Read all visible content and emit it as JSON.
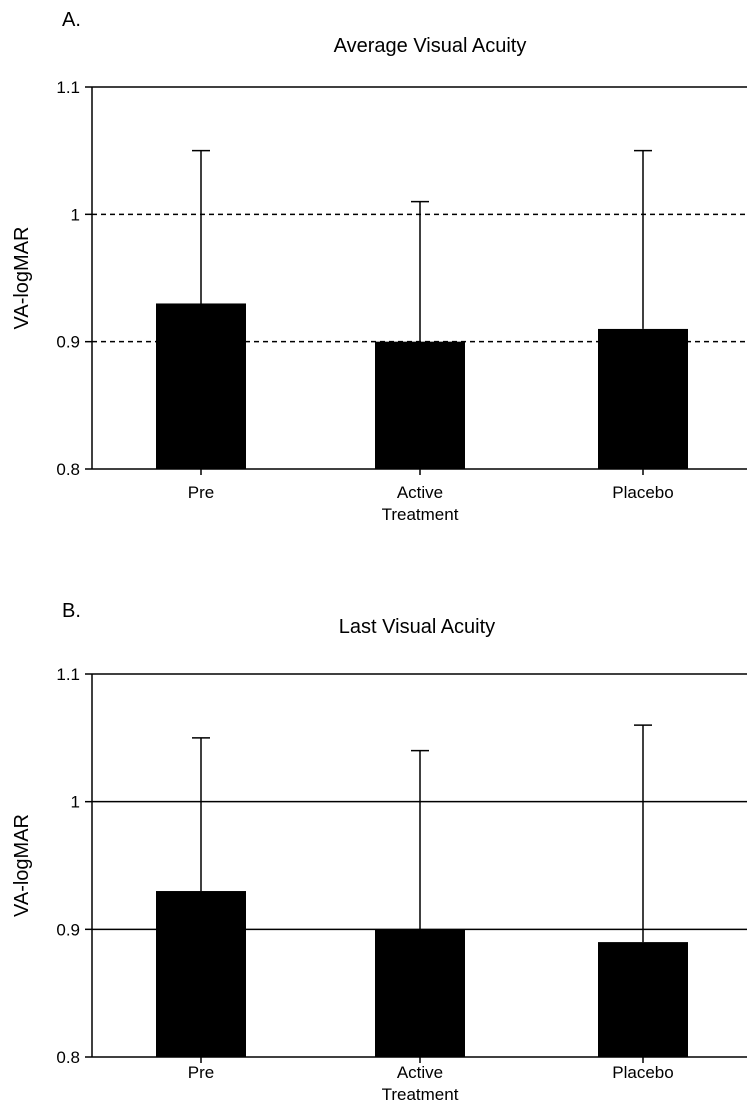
{
  "chart_data": [
    {
      "type": "bar",
      "panel_label": "A.",
      "title": "Average Visual Acuity",
      "ylabel": "VA-logMAR",
      "xlabel": "",
      "ylim": [
        0.8,
        1.1
      ],
      "yticks": [
        "0.8",
        "0.9",
        "1",
        "1.1"
      ],
      "categories": [
        [
          "Pre"
        ],
        [
          "Active",
          "Treatment"
        ],
        [
          "Placebo"
        ]
      ],
      "values": [
        0.93,
        0.9,
        0.91
      ],
      "error_upper": [
        1.05,
        1.01,
        1.05
      ],
      "gridlines": [
        0.9,
        1.0
      ],
      "grid_style": "dashed",
      "bar_color": "#000000"
    },
    {
      "type": "bar",
      "panel_label": "B.",
      "title": "Last Visual Acuity",
      "ylabel": "VA-logMAR",
      "xlabel": "",
      "ylim": [
        0.8,
        1.1
      ],
      "yticks": [
        "0.8",
        "0.9",
        "1",
        "1.1"
      ],
      "categories": [
        [
          "Pre"
        ],
        [
          "Active",
          "Treatment"
        ],
        [
          "Placebo"
        ]
      ],
      "values": [
        0.93,
        0.9,
        0.89
      ],
      "error_upper": [
        1.05,
        1.04,
        1.06
      ],
      "gridlines": [
        0.9,
        1.0
      ],
      "grid_style": "solid",
      "bar_color": "#000000"
    }
  ]
}
